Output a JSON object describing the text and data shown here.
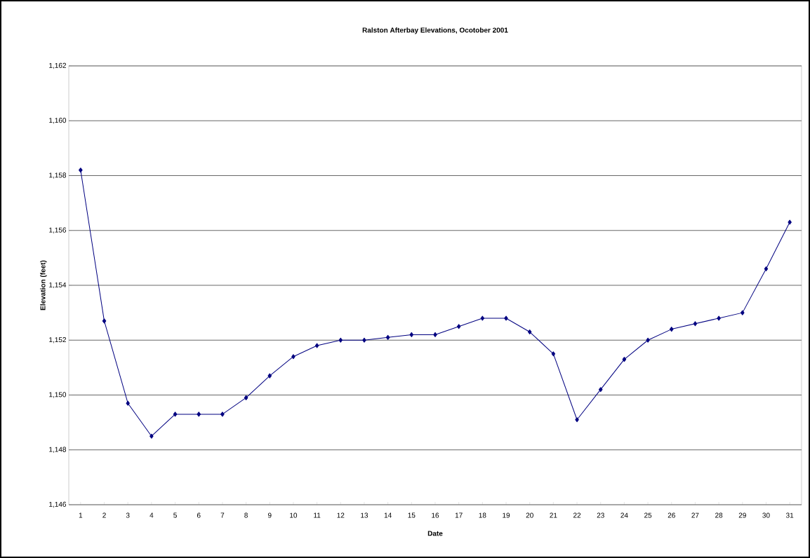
{
  "chart_data": {
    "type": "line",
    "title": "Ralston Afterbay Elevations, Ocotober 2001",
    "xlabel": "Date",
    "ylabel": "Elevation (feet)",
    "categories": [
      "1",
      "2",
      "3",
      "4",
      "5",
      "6",
      "7",
      "8",
      "9",
      "10",
      "11",
      "12",
      "13",
      "14",
      "15",
      "16",
      "17",
      "18",
      "19",
      "20",
      "21",
      "22",
      "23",
      "24",
      "25",
      "26",
      "27",
      "28",
      "29",
      "30",
      "31"
    ],
    "series": [
      {
        "color": "#000080",
        "values": [
          1158.2,
          1152.7,
          1149.7,
          1148.5,
          1149.3,
          1149.3,
          1149.3,
          1149.9,
          1150.7,
          1151.4,
          1151.8,
          1152.0,
          1152.0,
          1152.1,
          1152.2,
          1152.2,
          1152.5,
          1152.8,
          1152.8,
          1152.3,
          1151.5,
          1149.1,
          1150.2,
          1151.3,
          1152.0,
          1152.4,
          1152.6,
          1152.8,
          1153.0,
          1154.6,
          1156.3
        ]
      }
    ],
    "ylim": [
      1146,
      1162
    ],
    "yticks": [
      {
        "value": 1146,
        "label": "1,146"
      },
      {
        "value": 1148,
        "label": "1,148"
      },
      {
        "value": 1150,
        "label": "1,150"
      },
      {
        "value": 1152,
        "label": "1,152"
      },
      {
        "value": 1154,
        "label": "1,154"
      },
      {
        "value": 1156,
        "label": "1,156"
      },
      {
        "value": 1158,
        "label": "1,158"
      },
      {
        "value": 1160,
        "label": "1,160"
      },
      {
        "value": 1162,
        "label": "1,162"
      }
    ],
    "grid": "y",
    "marker": "diamond",
    "line_style": "solid"
  }
}
